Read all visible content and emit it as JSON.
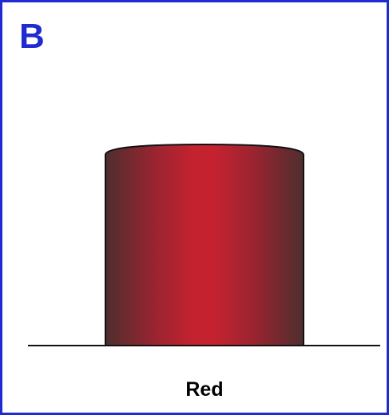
{
  "panel_label": "B",
  "label": "Red"
}
